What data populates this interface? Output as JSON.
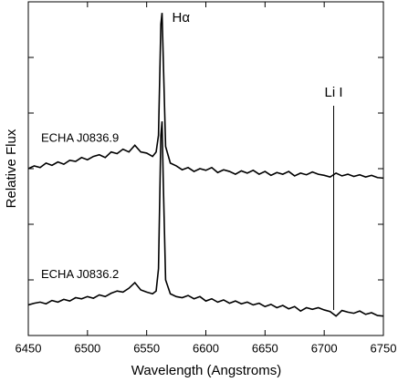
{
  "chart_data": {
    "type": "line",
    "x_label": "Wavelength (Angstroms)",
    "y_label": "Relative Flux",
    "x": [
      6450,
      6455,
      6460,
      6465,
      6470,
      6475,
      6480,
      6485,
      6490,
      6495,
      6500,
      6505,
      6510,
      6515,
      6520,
      6525,
      6530,
      6535,
      6540,
      6545,
      6550,
      6555,
      6558,
      6560,
      6562,
      6563,
      6564,
      6566,
      6570,
      6575,
      6580,
      6585,
      6590,
      6595,
      6600,
      6605,
      6610,
      6615,
      6620,
      6625,
      6630,
      6635,
      6640,
      6645,
      6650,
      6655,
      6660,
      6665,
      6670,
      6675,
      6680,
      6685,
      6690,
      6695,
      6700,
      6705,
      6710,
      6715,
      6720,
      6725,
      6730,
      6735,
      6740,
      6745,
      6750
    ],
    "series": [
      {
        "name": "ECHA J0836.9",
        "color": "#000000",
        "values": [
          3.0,
          3.05,
          3.02,
          3.1,
          3.06,
          3.12,
          3.08,
          3.15,
          3.13,
          3.2,
          3.16,
          3.22,
          3.25,
          3.2,
          3.3,
          3.27,
          3.35,
          3.3,
          3.42,
          3.3,
          3.28,
          3.22,
          3.3,
          3.6,
          5.6,
          5.8,
          5.0,
          3.4,
          3.1,
          3.05,
          2.98,
          3.02,
          2.95,
          3.0,
          2.97,
          3.02,
          2.93,
          2.98,
          2.95,
          2.9,
          2.96,
          2.92,
          2.97,
          2.9,
          2.95,
          2.88,
          2.93,
          2.9,
          2.95,
          2.87,
          2.92,
          2.89,
          2.94,
          2.9,
          2.88,
          2.85,
          2.92,
          2.87,
          2.9,
          2.86,
          2.89,
          2.85,
          2.88,
          2.84,
          2.83
        ]
      },
      {
        "name": "ECHA J0836.2",
        "color": "#000000",
        "values": [
          0.55,
          0.58,
          0.6,
          0.57,
          0.63,
          0.6,
          0.65,
          0.62,
          0.68,
          0.66,
          0.7,
          0.67,
          0.73,
          0.7,
          0.76,
          0.8,
          0.78,
          0.85,
          0.95,
          0.82,
          0.78,
          0.75,
          0.8,
          1.2,
          3.6,
          3.85,
          2.8,
          1.0,
          0.75,
          0.7,
          0.68,
          0.72,
          0.66,
          0.7,
          0.62,
          0.66,
          0.6,
          0.64,
          0.58,
          0.62,
          0.57,
          0.6,
          0.55,
          0.58,
          0.52,
          0.56,
          0.5,
          0.54,
          0.48,
          0.52,
          0.44,
          0.5,
          0.47,
          0.5,
          0.46,
          0.43,
          0.35,
          0.45,
          0.42,
          0.4,
          0.44,
          0.38,
          0.41,
          0.36,
          0.35
        ]
      }
    ],
    "annotations": [
      {
        "text": "Hα",
        "x": 6563
      },
      {
        "text": "Li I",
        "x": 6708
      }
    ],
    "xlim": [
      6450,
      6750
    ],
    "xticks": [
      6450,
      6500,
      6550,
      6600,
      6650,
      6700,
      6750
    ],
    "ylim": [
      0,
      6
    ],
    "yticks": [
      1,
      2,
      3,
      4,
      5
    ]
  }
}
